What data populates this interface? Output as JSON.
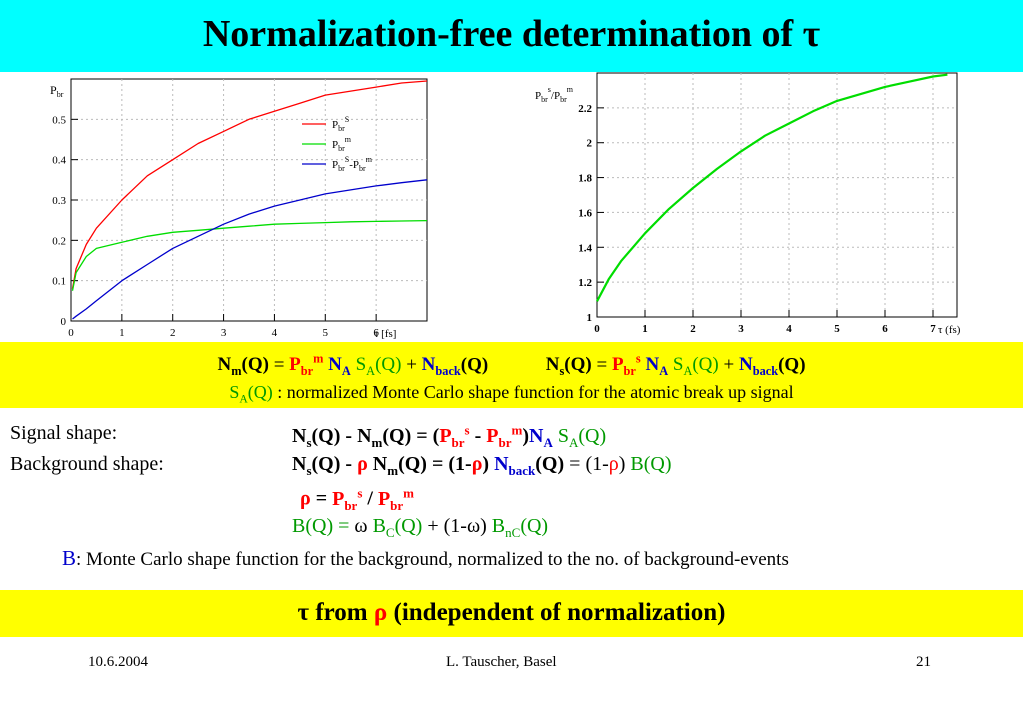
{
  "title": "Normalization-free determination of τ",
  "left_chart": {
    "ylabel_main": "P",
    "ylabel_sub": "br",
    "xlabel": "τ [fs]",
    "x_ticks": [
      "0",
      "1",
      "2",
      "3",
      "4",
      "5",
      "6"
    ],
    "y_ticks": [
      "0",
      "0.1",
      "0.2",
      "0.3",
      "0.4",
      "0.5"
    ],
    "legend": [
      {
        "main": "P",
        "sub": "br",
        "sup": "S",
        "extra": "",
        "color": "#ff0000"
      },
      {
        "main": "P",
        "sub": "br",
        "sup": "m",
        "extra": "",
        "color": "#00dd00"
      },
      {
        "main": "P",
        "sub": "br",
        "sup": "S",
        "extra": "-P",
        "extra_sub": "br",
        "extra_sup": "m",
        "color": "#0000cc"
      }
    ]
  },
  "right_chart": {
    "ylabel_a": "P",
    "ylabel_a_sub": "br",
    "ylabel_a_sup": "s",
    "ylabel_b": "/P",
    "ylabel_b_sub": "br",
    "ylabel_b_sup": "m",
    "xlabel": "τ (fs)",
    "x_ticks": [
      "0",
      "1",
      "2",
      "3",
      "4",
      "5",
      "6",
      "7"
    ],
    "y_ticks": [
      "1",
      "1.2",
      "1.4",
      "1.6",
      "1.8",
      "2",
      "2.2"
    ]
  },
  "chart_data": [
    {
      "type": "line",
      "xlabel": "τ [fs]",
      "ylabel": "Pbr",
      "xlim": [
        0,
        7
      ],
      "ylim": [
        0,
        0.6
      ],
      "x": [
        0.03,
        0.1,
        0.3,
        0.5,
        1,
        1.5,
        2,
        2.5,
        3,
        3.5,
        4,
        4.5,
        5,
        5.5,
        6,
        6.5,
        7
      ],
      "series": [
        {
          "name": "PbrS",
          "color": "#ff0000",
          "values": [
            0.08,
            0.13,
            0.19,
            0.23,
            0.3,
            0.36,
            0.4,
            0.44,
            0.47,
            0.5,
            0.52,
            0.54,
            0.56,
            0.57,
            0.58,
            0.59,
            0.595
          ]
        },
        {
          "name": "Pbrm",
          "color": "#00dd00",
          "values": [
            0.075,
            0.12,
            0.16,
            0.18,
            0.195,
            0.21,
            0.22,
            0.225,
            0.23,
            0.235,
            0.24,
            0.242,
            0.244,
            0.246,
            0.247,
            0.248,
            0.249
          ]
        },
        {
          "name": "PbrS-Pbrm",
          "color": "#0000cc",
          "values": [
            0.005,
            0.012,
            0.03,
            0.05,
            0.1,
            0.14,
            0.18,
            0.21,
            0.24,
            0.265,
            0.285,
            0.3,
            0.315,
            0.325,
            0.335,
            0.343,
            0.35
          ]
        }
      ]
    },
    {
      "type": "line",
      "xlabel": "τ (fs)",
      "ylabel": "Pbrs/Pbrm",
      "xlim": [
        0,
        7.5
      ],
      "ylim": [
        1,
        2.4
      ],
      "x": [
        0,
        0.25,
        0.5,
        1,
        1.5,
        2,
        2.5,
        3,
        3.5,
        4,
        4.5,
        5,
        5.5,
        6,
        6.5,
        7,
        7.3
      ],
      "series": [
        {
          "name": "",
          "color": "#00dd00",
          "values": [
            1.09,
            1.22,
            1.32,
            1.48,
            1.62,
            1.74,
            1.85,
            1.95,
            2.04,
            2.11,
            2.18,
            2.24,
            2.28,
            2.32,
            2.35,
            2.38,
            2.39
          ]
        }
      ]
    }
  ],
  "equations": {
    "nm": "N",
    "nm_sub": "m",
    "q": "(Q)",
    "eq": " = ",
    "p": "P",
    "br": "br",
    "m": "m",
    "na": "N",
    "na_sub": "A",
    "sa": "S",
    "sa_sub": "A",
    "sq": "(Q)",
    "plus": " + ",
    "nback": "N",
    "back": "back",
    "ns": "N",
    "ns_sub": "s",
    "s": "s",
    "note_s": "S",
    "note_sub": "A",
    "note_q": "(Q)",
    "note_text": " : normalized Monte Carlo shape function for the atomic break up signal"
  },
  "signal": {
    "label": "Signal shape:",
    "background_label": "Background shape:",
    "minus": " - ",
    "minus_rho": " - ",
    "rho": "ρ",
    "one_minus": "(1-",
    "close": ")",
    "one_minus_n": "(1-",
    "slash": " / ",
    "b": "B",
    "bq": "(Q)",
    "bq_eq": "(Q) = ",
    "omega": "ω",
    "bc": "B",
    "bc_sub": "C",
    "plus_one_minus": " + (1-",
    "omega2": "ω",
    "close2": ") ",
    "bnc": "B",
    "bnc_sub": "nC",
    "b_note_b": "B",
    "b_note_colon": ":",
    "b_note_text": " Monte Carlo shape function for the background, normalized to the no. of background-events"
  },
  "bottom_banner": {
    "tau": "τ",
    "from": " from ",
    "rho": "ρ",
    "rest": " (independent of normalization)"
  },
  "footer": {
    "date": "10.6.2004",
    "author": "L. Tauscher, Basel",
    "page": "21"
  },
  "colors": {
    "title_bg": "#00ffff",
    "highlight_bg": "#ffff00",
    "red": "#ff0000",
    "blue": "#0000cc",
    "green": "#009900"
  }
}
